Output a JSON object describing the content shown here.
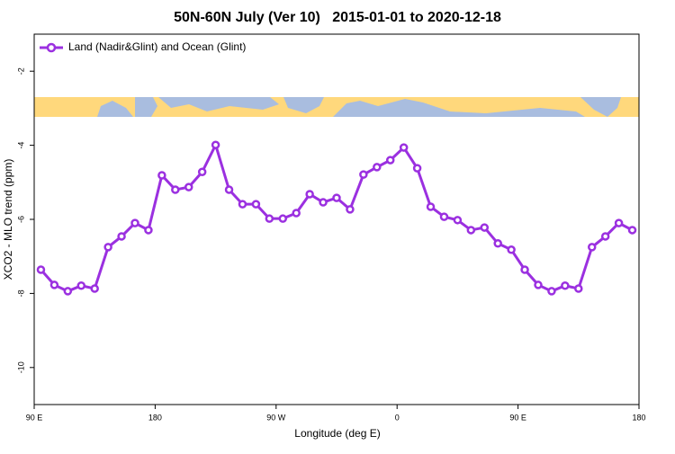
{
  "chart_data": {
    "type": "line",
    "title": "50N-60N July (Ver 10)   2015-01-01 to 2020-12-18",
    "x_label": "Longitude (deg E)",
    "y_label": "XCO2 - MLO trend (ppm)",
    "x": [
      95,
      105,
      115,
      125,
      135,
      145,
      155,
      165,
      175,
      185,
      195,
      205,
      215,
      225,
      235,
      245,
      255,
      265,
      275,
      285,
      295,
      305,
      315,
      325,
      335,
      345,
      355,
      365,
      375,
      385,
      395,
      405,
      415,
      425,
      435,
      445,
      455,
      465,
      475,
      485,
      495,
      505,
      515,
      525,
      535
    ],
    "series": [
      {
        "name": "Land (Nadir&Glint) and Ocean (Glint)",
        "color": "#9b30e0",
        "values": [
          -7.36,
          -7.77,
          -7.94,
          -7.79,
          -7.87,
          -6.75,
          -6.46,
          -6.1,
          -6.29,
          -4.81,
          -5.2,
          -5.13,
          -4.72,
          -3.99,
          -5.2,
          -5.59,
          -5.59,
          -5.98,
          -5.98,
          -5.83,
          -5.32,
          -5.54,
          -5.42,
          -5.73,
          -4.79,
          -4.59,
          -4.4,
          -4.06,
          -4.62,
          -5.66,
          -5.93,
          -6.02,
          -6.29,
          -6.22,
          -6.65,
          -6.82,
          -7.36,
          -7.77,
          -7.94,
          -7.79,
          -7.87,
          -6.75,
          -6.46,
          -6.1,
          -6.29
        ]
      }
    ],
    "xlim": [
      90,
      540
    ],
    "xticks": [
      {
        "value": 90,
        "label": "90 E"
      },
      180,
      {
        "value": 270,
        "label": "90 W"
      },
      {
        "value": 360,
        "label": "0"
      },
      {
        "value": 450,
        "label": "90 E"
      },
      {
        "value": 540,
        "label": "180"
      }
    ],
    "ylim": [
      -11,
      -1
    ],
    "yticks": [
      -2,
      -4,
      -6,
      -8,
      -10
    ],
    "legend": "top-left",
    "grid": false
  }
}
